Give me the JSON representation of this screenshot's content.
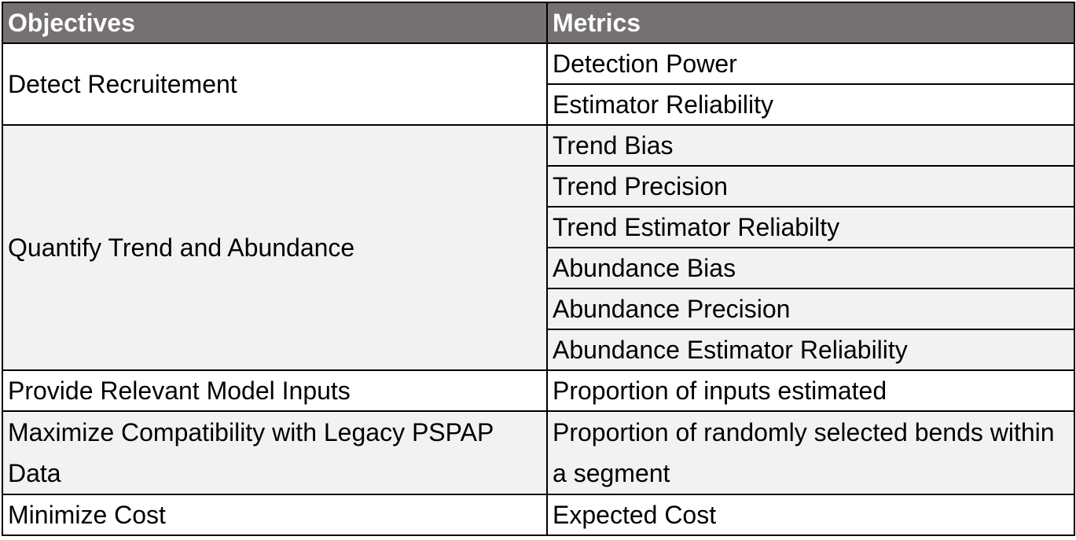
{
  "table": {
    "headers": {
      "objectives": "Objectives",
      "metrics": "Metrics"
    },
    "rows": [
      {
        "objective": "Detect Recruitement",
        "metrics": [
          "Detection Power",
          "Estimator Reliability"
        ]
      },
      {
        "objective": "Quantify Trend and Abundance",
        "metrics": [
          "Trend Bias",
          "Trend Precision",
          "Trend Estimator Reliabilty",
          "Abundance Bias",
          "Abundance Precision",
          "Abundance Estimator Reliability"
        ]
      },
      {
        "objective": "Provide Relevant Model Inputs",
        "metrics": [
          "Proportion of inputs estimated"
        ]
      },
      {
        "objective": "Maximize Compatibility with Legacy PSPAP Data",
        "metrics": [
          "Proportion of randomly selected bends within a segment"
        ]
      },
      {
        "objective": "Minimize Cost",
        "metrics": [
          "Expected Cost"
        ]
      }
    ]
  },
  "colors": {
    "header_bg": "#767171",
    "header_text": "#ffffff",
    "alt_row_bg": "#f2f2f2",
    "border": "#000000"
  }
}
